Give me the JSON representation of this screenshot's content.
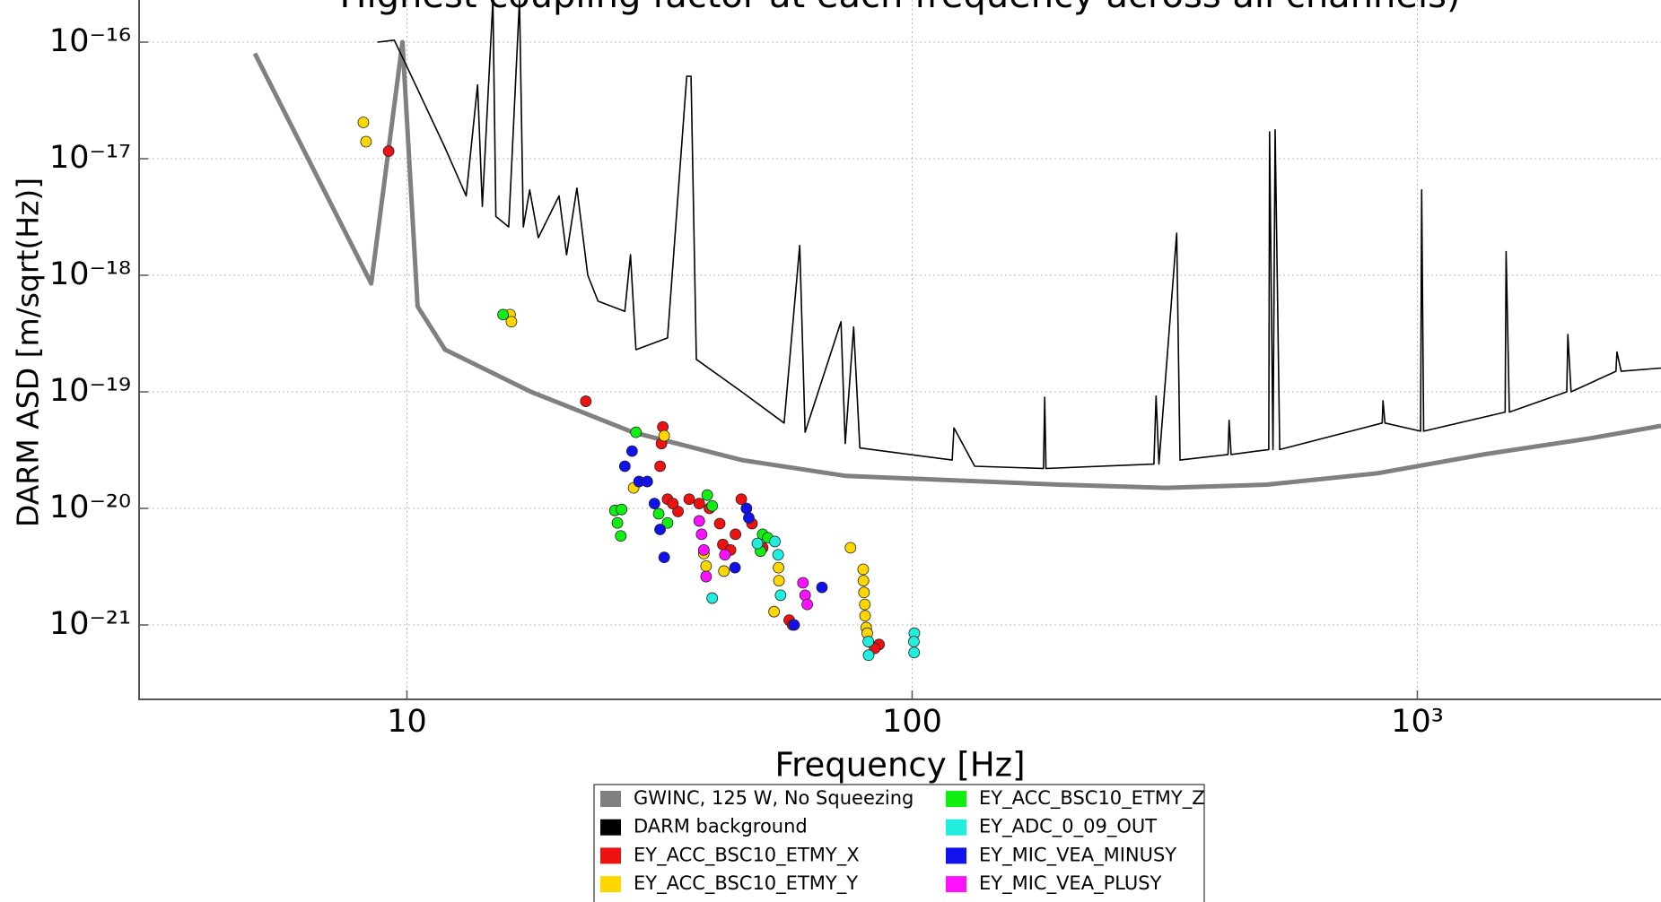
{
  "chart_data": {
    "type": "line",
    "title": "Highest coupling factor at each frequency across all channels)",
    "x_label": "Frequency [Hz]",
    "y_label": "DARM ASD [m/sqrt(Hz)]",
    "log_x": true,
    "log_y": true,
    "grid": true,
    "xlim": [
      2.95,
      3036
    ],
    "ylim": [
      2.3e-22,
      2.3e-16
    ],
    "xticks": [
      10,
      100,
      {
        "value": 1000,
        "label": "10³"
      }
    ],
    "yticks": [
      {
        "value": 1e-16,
        "label": "10⁻¹⁶"
      },
      {
        "value": 1e-17,
        "label": "10⁻¹⁷"
      },
      {
        "value": 1e-18,
        "label": "10⁻¹⁸"
      },
      {
        "value": 1e-19,
        "label": "10⁻¹⁹"
      },
      {
        "value": 1e-20,
        "label": "10⁻²⁰"
      },
      {
        "value": 1e-21,
        "label": "10⁻²¹"
      }
    ],
    "series": [
      {
        "name": "GWINC, 125 W, No Squeezing",
        "kind": "line",
        "color": "#808080",
        "x": [
          5,
          8.5,
          9.8,
          10.5,
          11.9,
          17.6,
          28,
          46,
          74,
          195,
          317,
          504,
          832,
          1350,
          2200,
          3036
        ],
        "values": [
          8e-17,
          8.5e-19,
          1e-16,
          5.4e-19,
          2.3e-19,
          1e-19,
          4.5e-20,
          2.6e-20,
          1.9e-20,
          1.6e-20,
          1.5e-20,
          1.6e-20,
          2e-20,
          2.9e-20,
          4e-20,
          5.1e-20
        ]
      },
      {
        "name": "DARM background",
        "kind": "line",
        "color": "#000000",
        "x": [
          8.74,
          9.44,
          10.4,
          11.9,
          13.1,
          13.8,
          14.1,
          14.8,
          15.0,
          15.9,
          16.7,
          17.0,
          17.5,
          18.2,
          20.0,
          20.7,
          21.7,
          22.8,
          23.9,
          27.0,
          27.7,
          28.4,
          32.8,
          35.8,
          36.5,
          37.4,
          46.0,
          55.8,
          59.9,
          61.4,
          72.3,
          73.7,
          76.6,
          78.8,
          120,
          121,
          133,
          182,
          183,
          184,
          301,
          304,
          308,
          334,
          339,
          422,
          424,
          428,
          508,
          510,
          518,
          523,
          534,
          852,
          855,
          863,
          1015,
          1020,
          1029,
          1492,
          1499,
          1521,
          1976,
          1986,
          2015,
          2472,
          2484,
          2532,
          3036
        ],
        "values": [
          1e-16,
          1.04e-16,
          4.3e-17,
          1.24e-17,
          4.8e-18,
          4.3e-17,
          3.9e-18,
          2.3e-16,
          3.2e-18,
          2.6e-18,
          2.3e-16,
          2.6e-18,
          5.4e-18,
          2.1e-18,
          4.8e-18,
          1.5e-18,
          5.6e-18,
          1e-18,
          6e-19,
          4.9e-19,
          1.5e-18,
          2.3e-19,
          2.9e-19,
          5.1e-17,
          5.1e-17,
          1.9e-19,
          1e-19,
          5.4e-20,
          1.8e-18,
          4.5e-20,
          4e-19,
          3.6e-20,
          3.6e-19,
          3.3e-20,
          2.6e-20,
          4.9e-20,
          2.3e-20,
          2.2e-20,
          9e-20,
          2.2e-20,
          2.4e-20,
          9.2e-20,
          2.4e-20,
          2.3e-18,
          2.6e-20,
          2.9e-20,
          5.7e-20,
          2.9e-20,
          3.2e-20,
          1.7e-17,
          3.2e-20,
          1.77e-17,
          3.2e-20,
          5.4e-20,
          8.4e-20,
          5.4e-20,
          4.6e-20,
          5.4e-18,
          4.6e-20,
          6.7e-20,
          1.6e-18,
          6.7e-20,
          1e-19,
          3.1e-19,
          1e-19,
          1.5e-19,
          2.2e-19,
          1.5e-19,
          1.6e-19
        ]
      },
      {
        "name": "EY_ACC_BSC10_ETMY_X",
        "kind": "scatter",
        "color": "#ee1111",
        "x": [
          9.2,
          22.6,
          32.1,
          31.9,
          31.7,
          32.8,
          34.4,
          33.6,
          36.2,
          37.9,
          39.7,
          41.6,
          42.2,
          43.7,
          44.7,
          45.9,
          48.2,
          50.6,
          57.1,
          58.0,
          86.0,
          84.3
        ],
        "values": [
          1.16e-17,
          8.3e-20,
          5e-20,
          3.6e-20,
          2.3e-20,
          1.2e-20,
          9.4e-21,
          1.1e-20,
          1.2e-20,
          1.1e-20,
          1e-20,
          7.4e-21,
          4.9e-21,
          4.4e-21,
          6e-21,
          1.2e-20,
          7.4e-21,
          4.6e-21,
          1.1e-21,
          1e-21,
          6.8e-22,
          6.3e-22
        ]
      },
      {
        "name": "EY_ACC_BSC10_ETMY_Y",
        "kind": "scatter",
        "color": "#ffd700",
        "x": [
          8.2,
          8.3,
          16.0,
          16.1,
          28.1,
          32.3,
          38.7,
          39.1,
          42.4,
          54.4,
          54.5,
          53.3,
          75.5,
          80.0,
          80.1,
          80.3,
          80.6,
          80.7,
          81.1,
          81.5
        ],
        "values": [
          2.05e-17,
          1.4e-17,
          4.6e-19,
          4e-19,
          1.5e-20,
          4.2e-20,
          4.1e-21,
          3.2e-21,
          2.9e-21,
          3.1e-21,
          2.4e-21,
          1.3e-21,
          4.6e-21,
          3e-21,
          2.4e-21,
          1.9e-21,
          1.5e-21,
          1.2e-21,
          9.5e-22,
          8.5e-22
        ]
      },
      {
        "name": "EY_ACC_BSC10_ETMY_Z",
        "kind": "scatter",
        "color": "#11ee11",
        "x": [
          15.5,
          28.4,
          25.8,
          26.6,
          26.1,
          26.5,
          31.5,
          32.8,
          39.3,
          40.2,
          50.6,
          51.8,
          50.1
        ],
        "values": [
          4.6e-19,
          4.5e-20,
          9.6e-21,
          9.8e-21,
          7.5e-21,
          5.8e-21,
          9e-21,
          7.5e-21,
          1.3e-20,
          1.05e-20,
          6e-21,
          5.6e-21,
          4.3e-21
        ]
      },
      {
        "name": "EY_ADC_0_09_OUT",
        "kind": "scatter",
        "color": "#22eedd",
        "x": [
          40.2,
          49.4,
          53.5,
          54.3,
          54.9,
          81.9,
          82.0,
          101,
          100.8,
          100.9
        ],
        "values": [
          1.7e-21,
          5e-21,
          5.2e-21,
          4e-21,
          1.8e-21,
          7.2e-22,
          5.5e-22,
          8.5e-22,
          7.2e-22,
          5.8e-22
        ]
      },
      {
        "name": "EY_MIC_VEA_MINUSY",
        "kind": "scatter",
        "color": "#1111ee",
        "x": [
          27.9,
          27.0,
          28.8,
          29.9,
          30.9,
          31.7,
          32.3,
          47.0,
          47.5,
          44.6,
          58.4,
          66.3
        ],
        "values": [
          3.1e-20,
          2.3e-20,
          1.7e-20,
          1.7e-20,
          1.1e-20,
          6.6e-21,
          3.8e-21,
          1e-20,
          8.3e-21,
          3.1e-21,
          1e-21,
          2.1e-21
        ]
      },
      {
        "name": "EY_MIC_VEA_PLUSY",
        "kind": "scatter",
        "color": "#ff11ff",
        "x": [
          37.9,
          38.3,
          38.7,
          39.1,
          42.6,
          60.8,
          61.4,
          62.0
        ],
        "values": [
          7.8e-21,
          6e-21,
          4.4e-21,
          2.6e-21,
          4e-21,
          2.3e-21,
          1.8e-21,
          1.5e-21
        ]
      }
    ]
  }
}
